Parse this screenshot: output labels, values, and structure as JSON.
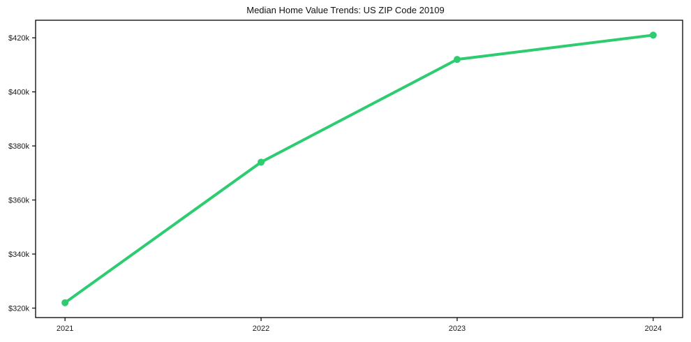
{
  "chart_data": {
    "type": "line",
    "title": "Median Home Value Trends: US ZIP Code 20109",
    "x": [
      2021,
      2022,
      2023,
      2024
    ],
    "series": [
      {
        "name": "Median Home Value",
        "values": [
          322000,
          374000,
          412000,
          421000
        ]
      }
    ],
    "x_tick_labels": [
      "2021",
      "2022",
      "2023",
      "2024"
    ],
    "y_ticks": [
      320000,
      340000,
      360000,
      380000,
      400000,
      420000
    ],
    "y_tick_labels": [
      "$320k",
      "$340k",
      "$360k",
      "$380k",
      "$400k",
      "$420k"
    ],
    "xlabel": "",
    "ylabel": "",
    "xlim": [
      2020.85,
      2024.15
    ],
    "ylim": [
      316500,
      426500
    ],
    "grid": false,
    "legend_position": "none",
    "line_color": "#2ecc71",
    "marker": "circle",
    "marker_radius": 5,
    "line_width": 4,
    "spine_color": "#000000",
    "background_color": "#ffffff",
    "text_color": "#1a1a1a"
  }
}
